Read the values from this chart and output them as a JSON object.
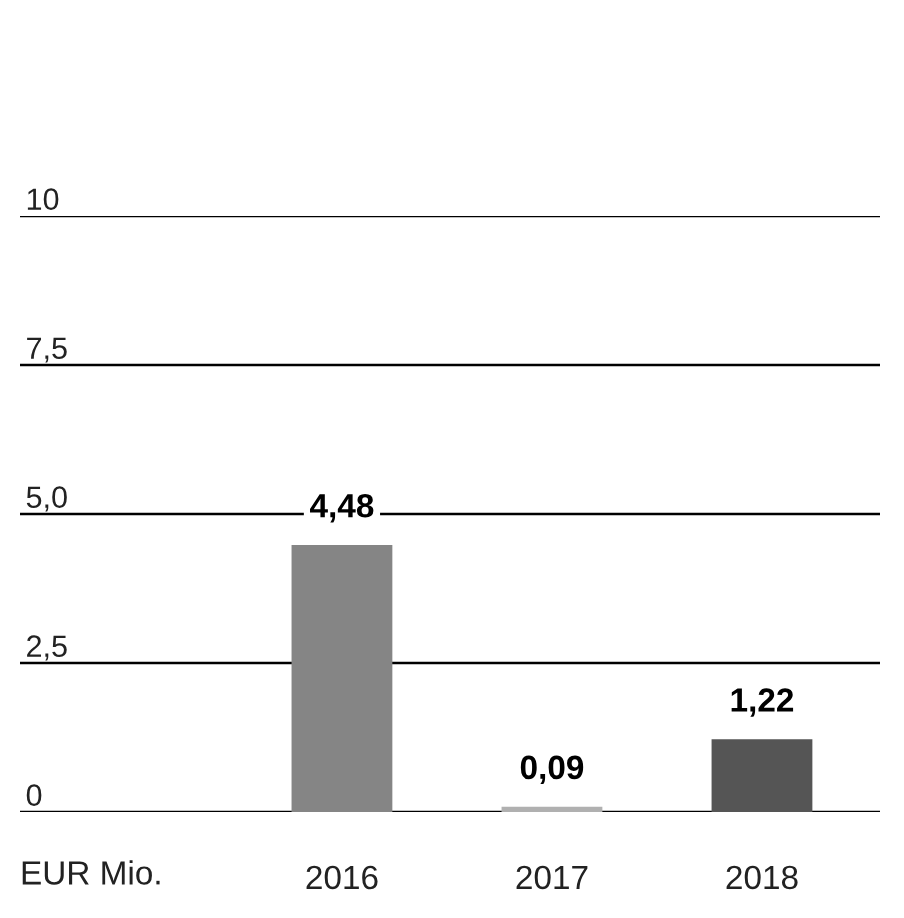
{
  "chart_data": {
    "type": "bar",
    "ylabel": "EUR Mio.",
    "categories": [
      "2016",
      "2017",
      "2018"
    ],
    "values": [
      4.48,
      0.09,
      1.22
    ],
    "colors": [
      "#858585",
      "#b0b0b0",
      "#555555"
    ],
    "value_labels": [
      "4,48",
      "0,09",
      "1,22"
    ],
    "ylim": [
      0,
      10
    ],
    "yticks": [
      {
        "value": 0,
        "label": "0"
      },
      {
        "value": 2.5,
        "label": "2,5"
      },
      {
        "value": 5,
        "label": "5,0"
      },
      {
        "value": 7.5,
        "label": "7,5"
      },
      {
        "value": 10,
        "label": "10"
      }
    ],
    "grid": "y",
    "legend": false
  }
}
